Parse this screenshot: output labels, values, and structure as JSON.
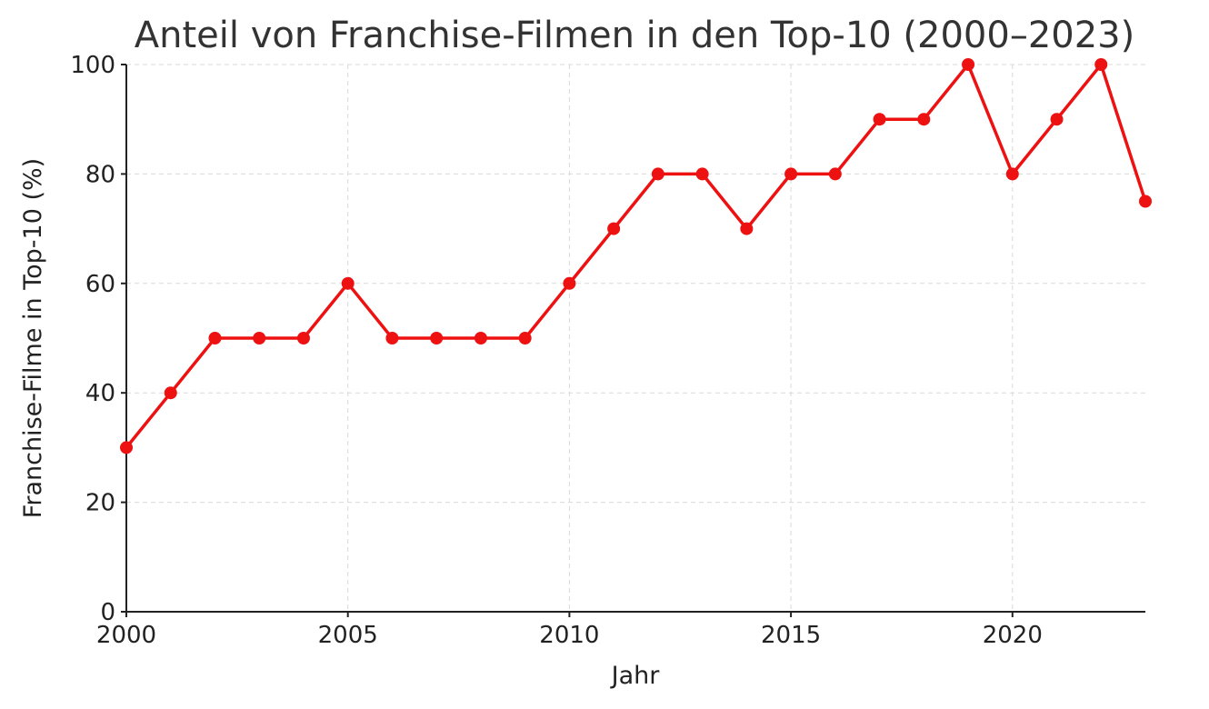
{
  "chart_data": {
    "type": "line",
    "title": "Anteil von Franchise-Filmen in den Top-10 (2000–2023)",
    "xlabel": "Jahr",
    "ylabel": "Franchise-Filme in Top-10 (%)",
    "x": [
      2000,
      2001,
      2002,
      2003,
      2004,
      2005,
      2006,
      2007,
      2008,
      2009,
      2010,
      2011,
      2012,
      2013,
      2014,
      2015,
      2016,
      2017,
      2018,
      2019,
      2020,
      2021,
      2022,
      2023
    ],
    "series": [
      {
        "values": [
          30,
          40,
          50,
          50,
          50,
          60,
          50,
          50,
          50,
          50,
          60,
          70,
          80,
          80,
          70,
          80,
          80,
          90,
          90,
          100,
          80,
          90,
          100,
          75
        ],
        "color": "#ee1111"
      }
    ],
    "xlim": [
      2000,
      2023
    ],
    "ylim": [
      0,
      100
    ],
    "xticks": [
      2000,
      2005,
      2010,
      2015,
      2020
    ],
    "yticks": [
      0,
      20,
      40,
      60,
      80,
      100
    ],
    "grid": true,
    "legend": false
  }
}
